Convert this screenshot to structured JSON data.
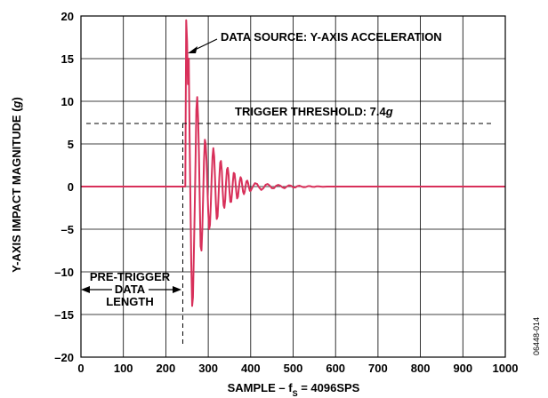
{
  "chart_data": {
    "type": "line",
    "xlabel_main": "SAMPLE – f",
    "xlabel_sub": "S",
    "xlabel_rest": " = 4096SPS",
    "ylabel_main": "Y-AXIS IMPACT MAGNITUDE (",
    "ylabel_unit": "g",
    "ylabel_close": ")",
    "xlim": [
      0,
      1000
    ],
    "ylim": [
      -20,
      20
    ],
    "x_ticks": [
      0,
      100,
      200,
      300,
      400,
      500,
      600,
      700,
      800,
      900,
      1000
    ],
    "y_ticks": [
      20,
      15,
      10,
      5,
      0,
      -5,
      -10,
      -15,
      -20
    ],
    "y_tick_labels": [
      "20",
      "15",
      "10",
      "5",
      "0",
      "–5",
      "–10",
      "–15",
      "–20"
    ],
    "grid": true,
    "series_color": "#d8305a",
    "trigger_threshold": 7.4,
    "trigger_sample": 240,
    "series": [
      {
        "x": [
          0,
          240,
          246,
          248,
          250,
          252,
          254,
          256,
          258,
          260,
          262,
          264,
          266,
          268,
          270,
          272,
          274,
          276,
          278,
          280,
          282,
          284,
          286,
          288,
          290,
          292,
          294,
          296,
          298,
          300,
          302,
          304,
          306,
          308,
          310,
          312,
          314,
          316,
          318,
          320,
          322,
          324,
          326,
          328,
          330,
          332,
          334,
          336,
          338,
          340,
          342,
          344,
          346,
          348,
          350,
          352,
          354,
          356,
          358,
          360,
          362,
          364,
          366,
          368,
          370,
          372,
          374,
          376,
          378,
          380,
          382,
          384,
          386,
          388,
          390,
          392,
          394,
          396,
          398,
          400,
          405,
          410,
          415,
          420,
          425,
          430,
          435,
          440,
          445,
          450,
          455,
          460,
          465,
          470,
          475,
          480,
          485,
          490,
          495,
          500,
          505,
          510,
          515,
          520,
          525,
          530,
          535,
          540,
          545,
          550,
          555,
          560,
          565,
          570,
          580,
          590,
          600,
          650,
          700,
          750,
          800,
          850,
          900,
          950,
          1000
        ],
        "y": [
          0,
          0,
          0,
          19.5,
          17,
          12,
          15,
          6,
          -2,
          -9,
          -14,
          -13,
          -8,
          -3,
          3,
          9,
          10.5,
          8,
          4,
          -2,
          -7,
          -7.5,
          -5,
          -1,
          3,
          5.5,
          5,
          3,
          0,
          -3,
          -5,
          -4.5,
          -2,
          1,
          3.5,
          4.5,
          3.5,
          1,
          -2,
          -3.8,
          -3.5,
          -1.5,
          1,
          2.8,
          3,
          1.8,
          -0.5,
          -2.2,
          -2.5,
          -1.5,
          0.5,
          2,
          2.2,
          1.3,
          -0.5,
          -1.8,
          -1.8,
          -0.8,
          0.6,
          1.6,
          1.5,
          0.6,
          -0.6,
          -1.4,
          -1.2,
          -0.3,
          0.6,
          1.1,
          0.9,
          0.1,
          -0.6,
          -0.9,
          -0.6,
          0.1,
          0.6,
          0.7,
          0.4,
          -0.1,
          -0.5,
          -0.5,
          0,
          0.4,
          0.3,
          -0.1,
          -0.4,
          -0.2,
          0.2,
          0.3,
          0.1,
          -0.2,
          -0.2,
          0.1,
          0.2,
          0.1,
          -0.1,
          -0.2,
          0,
          0.15,
          0.1,
          -0.1,
          -0.1,
          0.05,
          0.1,
          0,
          -0.08,
          -0.05,
          0.05,
          0.05,
          -0.03,
          -0.04,
          0.02,
          0.03,
          0,
          -0.02,
          0,
          0,
          0,
          0,
          0,
          0,
          0,
          0,
          0,
          0,
          0
        ]
      }
    ],
    "annotations": {
      "data_source": "DATA SOURCE: Y-AXIS ACCELERATION",
      "trigger_label_prefix": "TRIGGER THRESHOLD: 7.4",
      "trigger_label_unit": "g",
      "pretrigger_line1": "PRE-TRIGGER",
      "pretrigger_line2": "DATA",
      "pretrigger_line3": "LENGTH"
    },
    "figure_id": "06448-014"
  }
}
